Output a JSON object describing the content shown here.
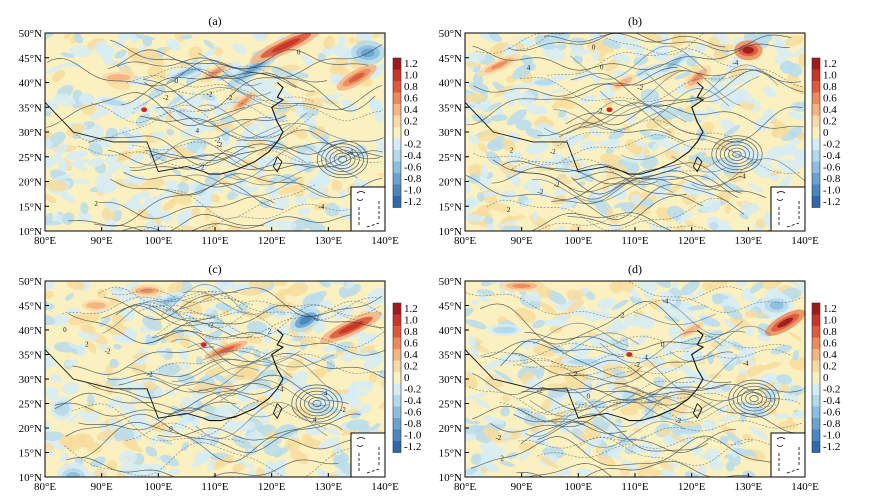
{
  "chart_data": {
    "type": "heatmap",
    "shared_axes": {
      "x_ticks": [
        "80°E",
        "90°E",
        "100°E",
        "110°E",
        "120°E",
        "130°E",
        "140°E"
      ],
      "y_ticks": [
        "50°N",
        "45°N",
        "40°N",
        "35°N",
        "30°N",
        "25°N",
        "20°N",
        "15°N",
        "10°N"
      ],
      "xlim": [
        80,
        140
      ],
      "ylim": [
        10,
        50
      ]
    },
    "colorbar": {
      "labels": [
        "1.2",
        "1.0",
        "0.8",
        "0.6",
        "0.4",
        "0.2",
        "0",
        "-0.2",
        "-0.4",
        "-0.6",
        "-0.8",
        "-1.0",
        "-1.2"
      ],
      "colors": [
        "#9e1b1b",
        "#c8362b",
        "#dd5a3c",
        "#ec8a5c",
        "#f4b483",
        "#fad9a6",
        "#fbf0bf",
        "#d6ecf4",
        "#b3d9ec",
        "#8cbfdf",
        "#6aa3cf",
        "#4a86bf",
        "#2f69ab"
      ]
    },
    "panels": [
      {
        "label": "(a)",
        "marker": {
          "lon": 97.5,
          "lat": 34.5
        },
        "warm_features": [
          {
            "lon": 122.5,
            "lat": 47.5,
            "rx": 7,
            "ry": 1.6,
            "rot": -25,
            "v": 1.0
          },
          {
            "lon": 135,
            "lat": 41,
            "rx": 4,
            "ry": 1.5,
            "rot": -30,
            "v": 0.8
          },
          {
            "lon": 110,
            "lat": 42,
            "rx": 3,
            "ry": 1.2,
            "rot": -30,
            "v": 0.6
          },
          {
            "lon": 115,
            "lat": 36,
            "rx": 3,
            "ry": 1.2,
            "rot": -40,
            "v": 0.5
          },
          {
            "lon": 93,
            "lat": 41,
            "rx": 3,
            "ry": 1.2,
            "rot": 0,
            "v": 0.4
          }
        ],
        "cold_features": [
          {
            "lon": 117,
            "lat": 43,
            "rx": 6,
            "ry": 1.4,
            "rot": -35,
            "v": -0.8
          },
          {
            "lon": 137,
            "lat": 46,
            "rx": 3,
            "ry": 2.5,
            "rot": 0,
            "v": -0.8
          },
          {
            "lon": 105,
            "lat": 42,
            "rx": 4,
            "ry": 1.2,
            "rot": -20,
            "v": -0.6
          },
          {
            "lon": 92,
            "lat": 36,
            "rx": 3,
            "ry": 1.0,
            "rot": 10,
            "v": -0.4
          }
        ],
        "vortex": {
          "lon": 132.5,
          "lat": 24.5
        }
      },
      {
        "label": "(b)",
        "marker": {
          "lon": 105.5,
          "lat": 34.5
        },
        "warm_features": [
          {
            "lon": 130,
            "lat": 46.5,
            "rx": 2.5,
            "ry": 2,
            "rot": 0,
            "v": 1.2
          },
          {
            "lon": 86,
            "lat": 43.5,
            "rx": 4,
            "ry": 1.2,
            "rot": -25,
            "v": 0.6
          },
          {
            "lon": 121,
            "lat": 41,
            "rx": 3,
            "ry": 1.5,
            "rot": -40,
            "v": 0.6
          },
          {
            "lon": 108,
            "lat": 40,
            "rx": 2.5,
            "ry": 1,
            "rot": -30,
            "v": 0.4
          }
        ],
        "cold_features": [
          {
            "lon": 117,
            "lat": 44,
            "rx": 4,
            "ry": 1.2,
            "rot": -35,
            "v": -0.6
          },
          {
            "lon": 94,
            "lat": 40,
            "rx": 2.5,
            "ry": 1,
            "rot": 0,
            "v": -0.4
          },
          {
            "lon": 114,
            "lat": 29,
            "rx": 2,
            "ry": 1,
            "rot": 0,
            "v": -0.4
          }
        ],
        "vortex": {
          "lon": 128,
          "lat": 25.5
        }
      },
      {
        "label": "(c)",
        "marker": {
          "lon": 108,
          "lat": 37
        },
        "warm_features": [
          {
            "lon": 134,
            "lat": 40.5,
            "rx": 6,
            "ry": 1.6,
            "rot": -25,
            "v": 1.0
          },
          {
            "lon": 112,
            "lat": 36,
            "rx": 4,
            "ry": 1.0,
            "rot": -20,
            "v": 0.8
          },
          {
            "lon": 98,
            "lat": 48,
            "rx": 3,
            "ry": 1.3,
            "rot": 0,
            "v": 0.6
          },
          {
            "lon": 89,
            "lat": 45,
            "rx": 2.5,
            "ry": 1.2,
            "rot": 0,
            "v": 0.4
          }
        ],
        "cold_features": [
          {
            "lon": 126,
            "lat": 42,
            "rx": 3,
            "ry": 2,
            "rot": -30,
            "v": -1.0
          },
          {
            "lon": 102,
            "lat": 46,
            "rx": 3,
            "ry": 1.4,
            "rot": -20,
            "v": -0.6
          },
          {
            "lon": 83,
            "lat": 24,
            "rx": 2,
            "ry": 2.5,
            "rot": 0,
            "v": -0.4
          },
          {
            "lon": 85,
            "lat": 10,
            "rx": 3,
            "ry": 3,
            "rot": 0,
            "v": -0.6
          }
        ],
        "vortex": {
          "lon": 128,
          "lat": 25
        }
      },
      {
        "label": "(d)",
        "marker": {
          "lon": 109,
          "lat": 35
        },
        "warm_features": [
          {
            "lon": 136.5,
            "lat": 41.5,
            "rx": 4,
            "ry": 1.6,
            "rot": -30,
            "v": 1.2
          },
          {
            "lon": 90,
            "lat": 49,
            "rx": 4,
            "ry": 1.2,
            "rot": 0,
            "v": 0.5
          },
          {
            "lon": 120,
            "lat": 40,
            "rx": 2.5,
            "ry": 1,
            "rot": -30,
            "v": 0.4
          }
        ],
        "cold_features": [
          {
            "lon": 135,
            "lat": 45,
            "rx": 3,
            "ry": 2.5,
            "rot": 0,
            "v": -0.6
          },
          {
            "lon": 101,
            "lat": 33.5,
            "rx": 4,
            "ry": 1.0,
            "rot": 0,
            "v": -0.4
          },
          {
            "lon": 87,
            "lat": 40,
            "rx": 3,
            "ry": 1.2,
            "rot": 0,
            "v": -0.4
          }
        ],
        "vortex": {
          "lon": 131,
          "lat": 26
        }
      }
    ],
    "contour_label_values": [
      "-4",
      "-2",
      "-2",
      "0",
      "2",
      "-2",
      "4",
      "-2",
      "0",
      "-4",
      "2",
      "-2"
    ]
  }
}
